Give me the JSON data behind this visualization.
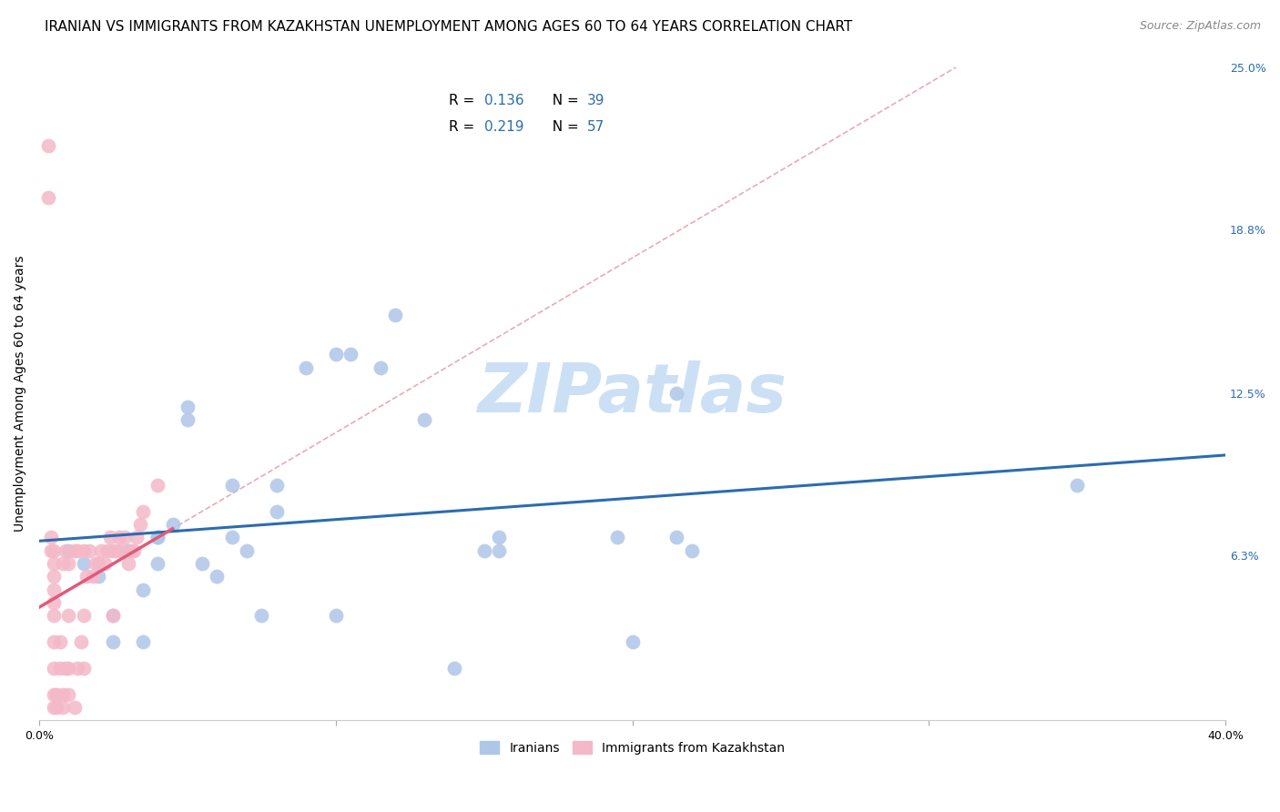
{
  "title": "IRANIAN VS IMMIGRANTS FROM KAZAKHSTAN UNEMPLOYMENT AMONG AGES 60 TO 64 YEARS CORRELATION CHART",
  "source": "Source: ZipAtlas.com",
  "ylabel": "Unemployment Among Ages 60 to 64 years",
  "xlim": [
    0.0,
    0.4
  ],
  "ylim": [
    0.0,
    0.25
  ],
  "xticks": [
    0.0,
    0.1,
    0.2,
    0.3,
    0.4
  ],
  "xticklabels": [
    "0.0%",
    "",
    "",
    "",
    "40.0%"
  ],
  "ytick_positions": [
    0.063,
    0.125,
    0.188,
    0.25
  ],
  "ytick_labels": [
    "6.3%",
    "12.5%",
    "18.8%",
    "25.0%"
  ],
  "background_color": "#ffffff",
  "grid_color": "#cccccc",
  "iranians_color": "#aec6e8",
  "kazakh_color": "#f4b8c8",
  "trend_iranian_color": "#2b6cb0",
  "trend_kazakh_color": "#e05a7a",
  "trend_kazakh_dashed_color": "#e8a0b0",
  "R_iranian": "0.136",
  "N_iranian": "39",
  "R_kazakh": "0.219",
  "N_kazakh": "57",
  "iranians_x": [
    0.01,
    0.015,
    0.02,
    0.025,
    0.025,
    0.03,
    0.035,
    0.035,
    0.04,
    0.04,
    0.04,
    0.045,
    0.05,
    0.05,
    0.055,
    0.06,
    0.065,
    0.065,
    0.07,
    0.075,
    0.08,
    0.08,
    0.09,
    0.1,
    0.1,
    0.105,
    0.115,
    0.12,
    0.13,
    0.14,
    0.15,
    0.155,
    0.155,
    0.195,
    0.2,
    0.215,
    0.215,
    0.22,
    0.35
  ],
  "iranians_y": [
    0.065,
    0.06,
    0.055,
    0.04,
    0.03,
    0.065,
    0.03,
    0.05,
    0.06,
    0.07,
    0.07,
    0.075,
    0.115,
    0.12,
    0.06,
    0.055,
    0.07,
    0.09,
    0.065,
    0.04,
    0.08,
    0.09,
    0.135,
    0.14,
    0.04,
    0.14,
    0.135,
    0.155,
    0.115,
    0.02,
    0.065,
    0.065,
    0.07,
    0.07,
    0.03,
    0.125,
    0.07,
    0.065,
    0.09
  ],
  "kazakh_x": [
    0.003,
    0.003,
    0.004,
    0.004,
    0.005,
    0.005,
    0.005,
    0.005,
    0.005,
    0.005,
    0.005,
    0.005,
    0.005,
    0.005,
    0.006,
    0.006,
    0.007,
    0.007,
    0.008,
    0.008,
    0.008,
    0.009,
    0.009,
    0.01,
    0.01,
    0.01,
    0.01,
    0.012,
    0.012,
    0.013,
    0.013,
    0.014,
    0.015,
    0.015,
    0.015,
    0.016,
    0.017,
    0.018,
    0.019,
    0.02,
    0.021,
    0.022,
    0.023,
    0.024,
    0.025,
    0.025,
    0.026,
    0.027,
    0.028,
    0.029,
    0.03,
    0.031,
    0.032,
    0.033,
    0.034,
    0.035,
    0.04
  ],
  "kazakh_y": [
    0.22,
    0.2,
    0.07,
    0.065,
    0.005,
    0.01,
    0.02,
    0.03,
    0.04,
    0.045,
    0.05,
    0.055,
    0.06,
    0.065,
    0.005,
    0.01,
    0.02,
    0.03,
    0.005,
    0.01,
    0.06,
    0.02,
    0.065,
    0.01,
    0.02,
    0.04,
    0.06,
    0.005,
    0.065,
    0.02,
    0.065,
    0.03,
    0.02,
    0.04,
    0.065,
    0.055,
    0.065,
    0.055,
    0.06,
    0.06,
    0.065,
    0.06,
    0.065,
    0.07,
    0.04,
    0.065,
    0.065,
    0.07,
    0.065,
    0.07,
    0.06,
    0.065,
    0.065,
    0.07,
    0.075,
    0.08,
    0.09
  ],
  "watermark_text": "ZIPatlas",
  "watermark_color": "#cce0f5",
  "title_fontsize": 11,
  "source_fontsize": 9,
  "axis_label_fontsize": 10,
  "tick_fontsize": 9
}
